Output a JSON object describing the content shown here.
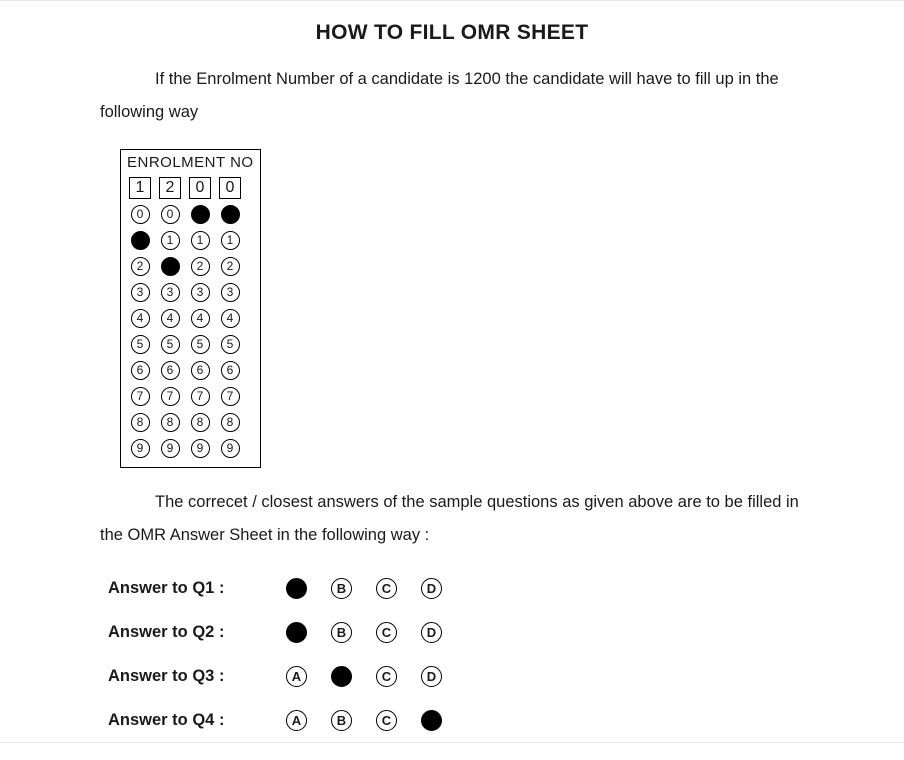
{
  "title": "HOW TO FILL OMR SHEET",
  "intro": "If the Enrolment Number of a candidate is 1200 the candidate will have to fill up in the following way",
  "enrolment": {
    "header": "ENROLMENT NO",
    "digits": [
      "1",
      "2",
      "0",
      "0"
    ],
    "rows": 10,
    "cols": 4,
    "filled_per_column": [
      1,
      2,
      0,
      0
    ],
    "bubble_border": "#000000",
    "bubble_fill": "#000000",
    "bubble_labels": [
      "0",
      "1",
      "2",
      "3",
      "4",
      "5",
      "6",
      "7",
      "8",
      "9"
    ]
  },
  "para2": "The correcet / closest answers of the sample questions as given above are to be filled in the OMR Answer Sheet in the following way :",
  "options": [
    "A",
    "B",
    "C",
    "D"
  ],
  "answers": [
    {
      "label": "Answer to Q1 :",
      "filled_index": 0
    },
    {
      "label": "Answer to Q2 :",
      "filled_index": 0
    },
    {
      "label": "Answer to Q3 :",
      "filled_index": 1
    },
    {
      "label": "Answer to Q4 :",
      "filled_index": 3
    }
  ],
  "colors": {
    "text": "#1a1a1a",
    "background": "#ffffff"
  },
  "fontsize": {
    "title": 21,
    "body": 16.5,
    "bubble_digit": 12,
    "answer_letter": 13
  }
}
